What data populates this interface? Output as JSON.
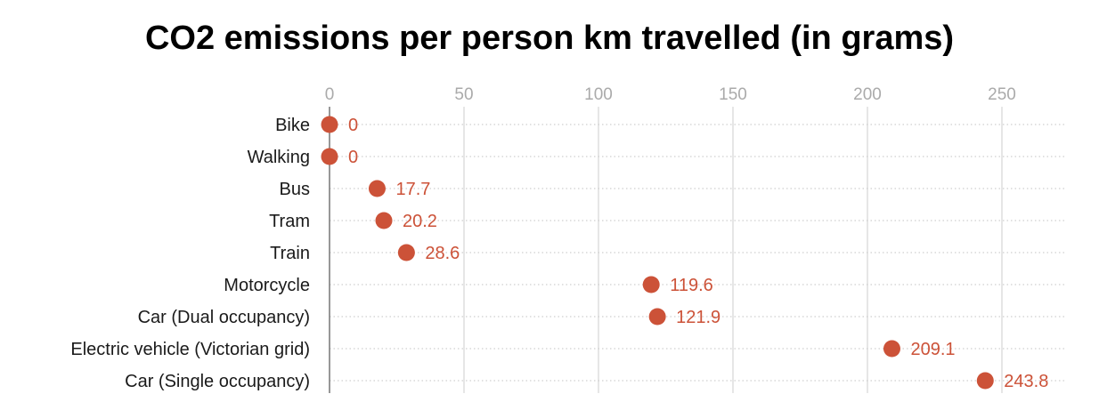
{
  "chart_data": {
    "type": "scatter",
    "title": "CO2 emissions per person km travelled (in grams)",
    "xlabel": "",
    "ylabel": "",
    "xlim": [
      0,
      275
    ],
    "xticks": [
      0,
      50,
      100,
      150,
      200,
      250
    ],
    "xtick_labels": [
      "0",
      "50",
      "100",
      "150",
      "200",
      "250"
    ],
    "tick_position": "top",
    "grid": true,
    "categories": [
      "Bike",
      "Walking",
      "Bus",
      "Tram",
      "Train",
      "Motorcycle",
      "Car (Dual occupancy)",
      "Electric vehicle (Victorian grid)",
      "Car (Single occupancy)"
    ],
    "values": [
      0,
      0,
      17.7,
      20.2,
      28.6,
      119.6,
      121.9,
      209.1,
      243.8
    ],
    "value_labels": [
      "0",
      "0",
      "17.7",
      "20.2",
      "28.6",
      "119.6",
      "121.9",
      "209.1",
      "243.8"
    ],
    "colors": {
      "marker": "#cc5238",
      "value_text": "#cc5238",
      "grid": "#dddddd",
      "row_line": "#cfcfcf",
      "axis": "#777777"
    }
  }
}
